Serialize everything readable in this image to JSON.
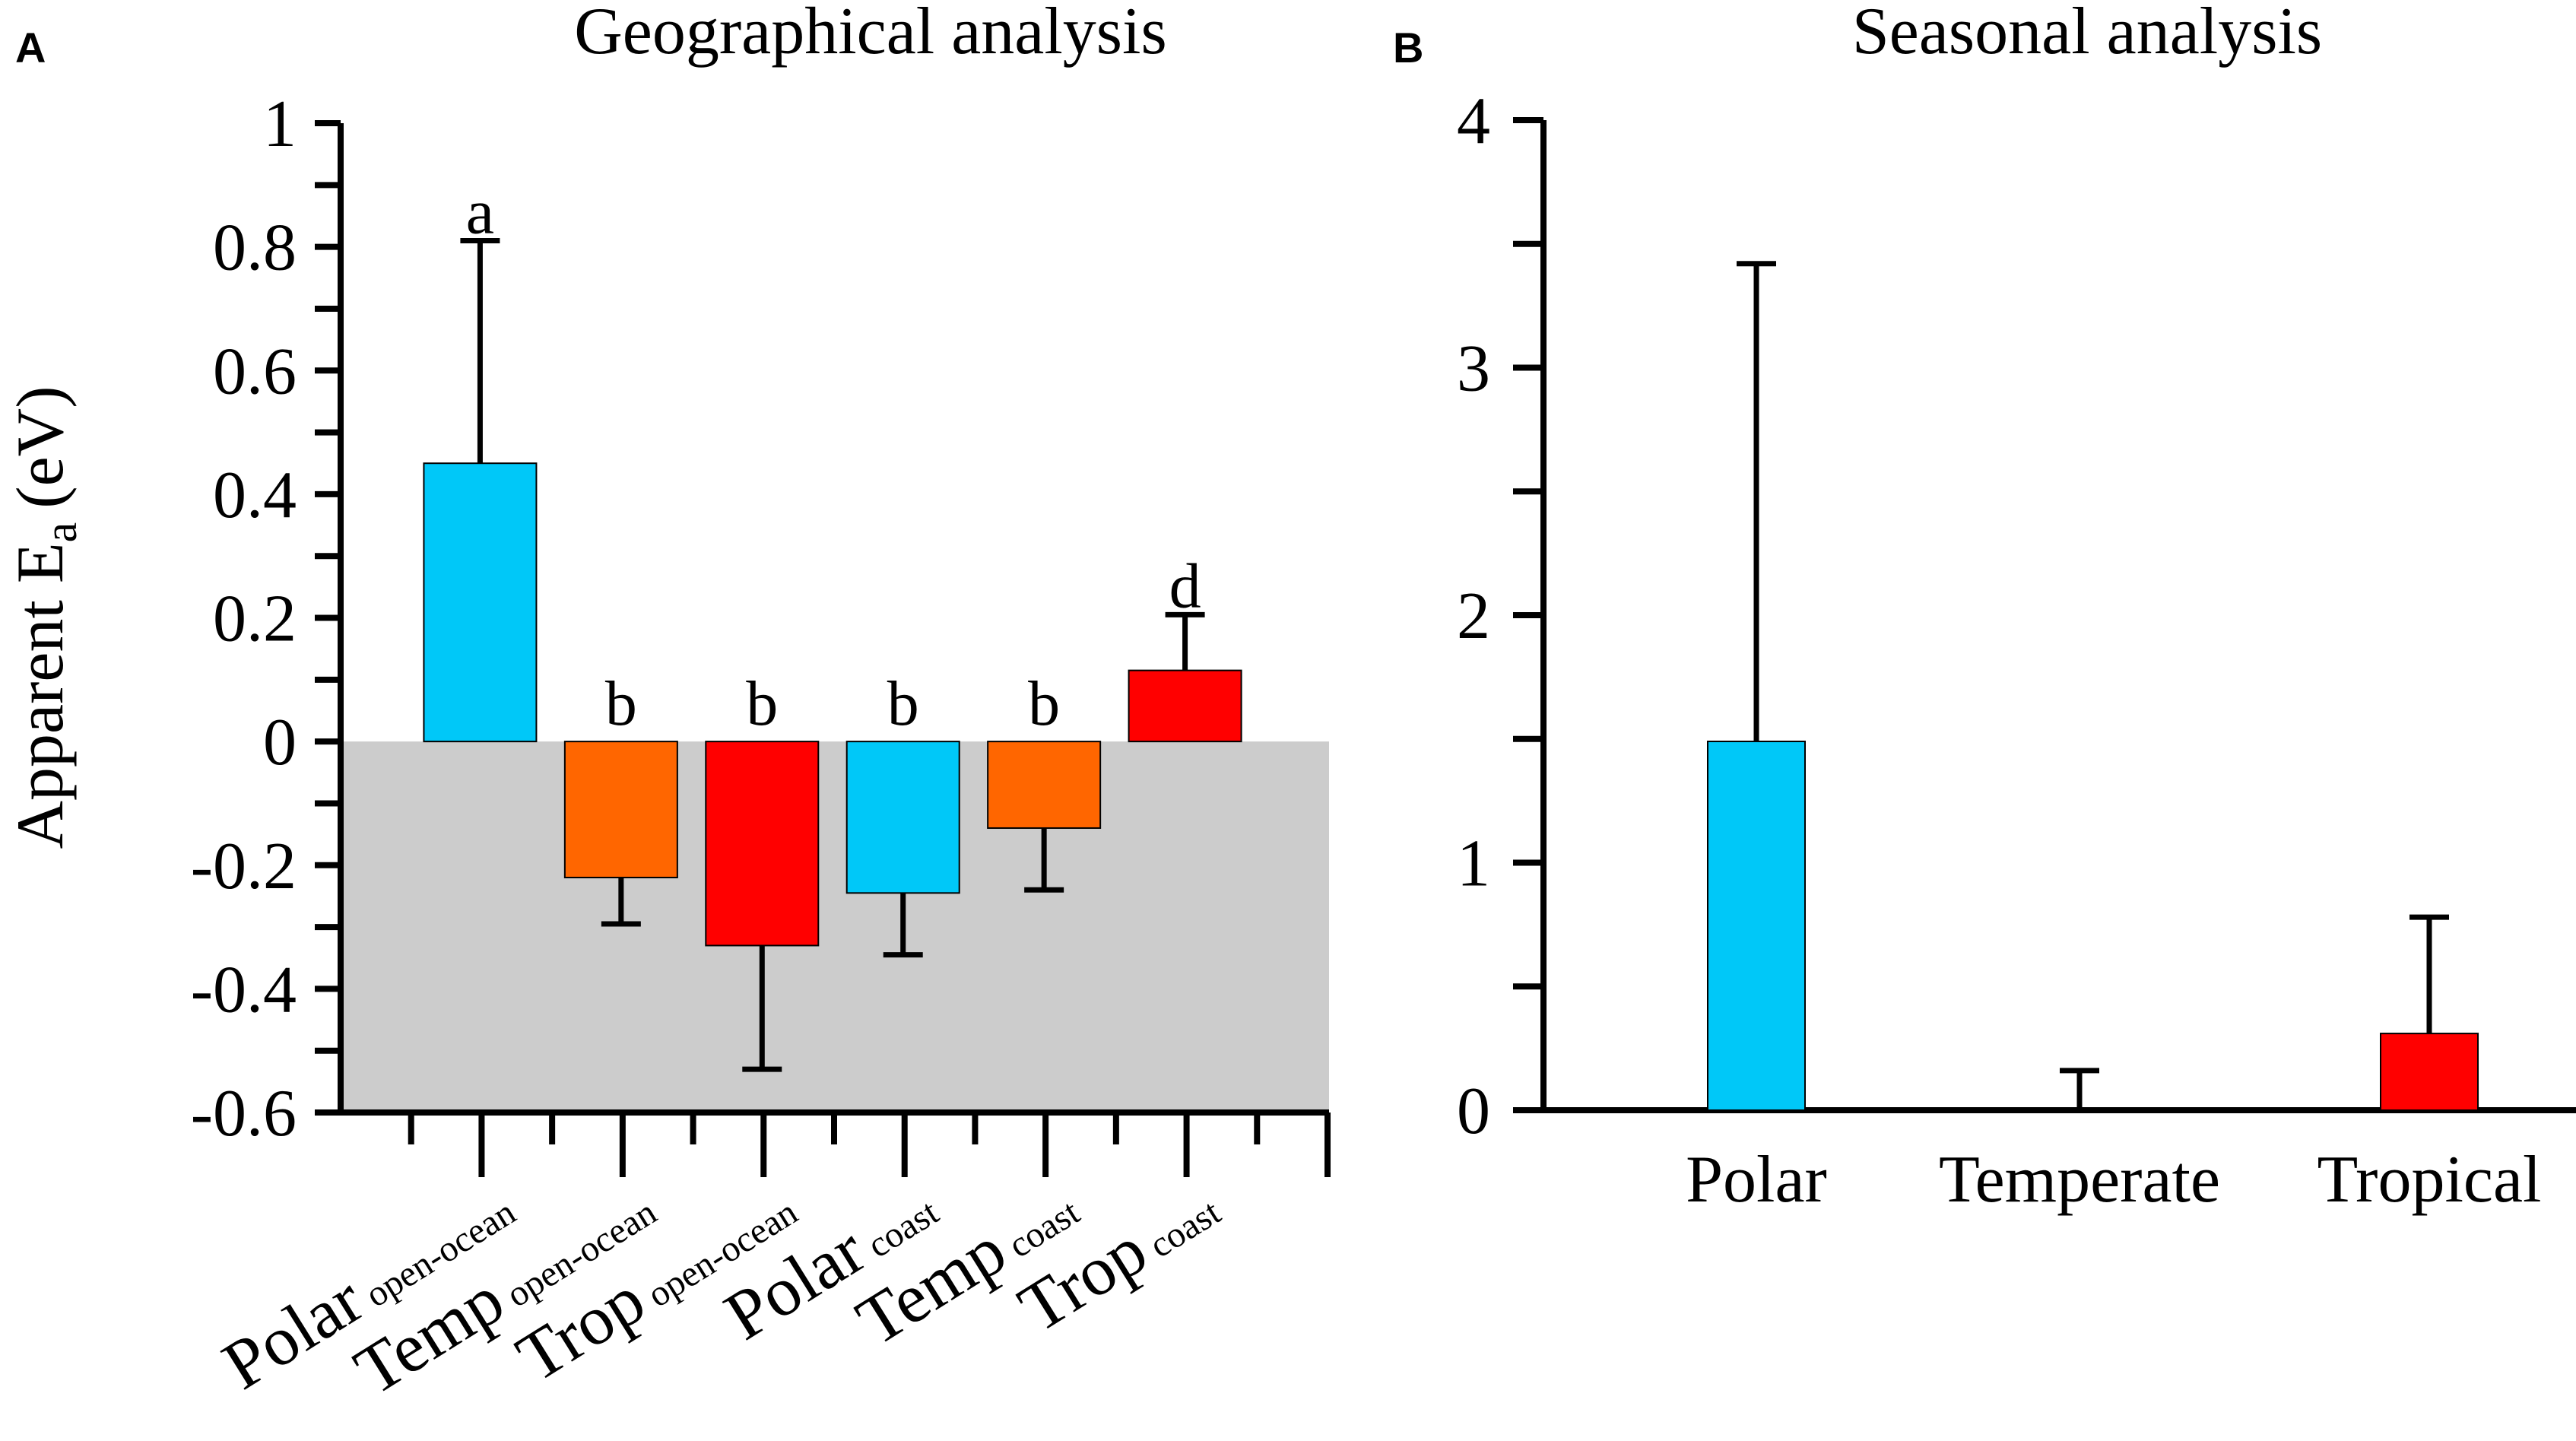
{
  "chart_data": [
    {
      "panel": "A",
      "type": "bar",
      "title": "Geographical analysis",
      "ylabel": "Apparent E",
      "ylabel_sub": "a",
      "ylabel_unit": "(eV)",
      "ylim": [
        -0.6,
        1.0
      ],
      "yticks": [
        1,
        0.8,
        0.6,
        0.4,
        0.2,
        0,
        -0.2,
        -0.4,
        -0.6
      ],
      "ytick_labels": [
        "1",
        "0.8",
        "0.6",
        "0.4",
        "0.2",
        "0",
        "-0.2",
        "-0.4",
        "-0.6"
      ],
      "negative_region_shaded": true,
      "shade_color": "#cccccc",
      "categories": [
        {
          "main": "Polar",
          "sub": "open-ocean"
        },
        {
          "main": "Temp",
          "sub": "open-ocean"
        },
        {
          "main": "Trop",
          "sub": "open-ocean"
        },
        {
          "main": "Polar",
          "sub": "coast"
        },
        {
          "main": "Temp",
          "sub": "coast"
        },
        {
          "main": "Trop",
          "sub": "coast"
        }
      ],
      "values": [
        0.45,
        -0.22,
        -0.33,
        -0.245,
        -0.14,
        0.115
      ],
      "error_ends": [
        0.81,
        -0.295,
        -0.53,
        -0.345,
        -0.24,
        0.205
      ],
      "significance": [
        "a",
        "b",
        "b",
        "b",
        "b",
        "d"
      ],
      "colors": [
        "#00c8f8",
        "#ff6600",
        "#ff0000",
        "#00c8f8",
        "#ff6600",
        "#ff0000"
      ]
    },
    {
      "panel": "B",
      "type": "bar",
      "title": "Seasonal analysis",
      "ylim": [
        0,
        4
      ],
      "yticks": [
        4,
        3,
        2,
        1,
        0
      ],
      "ytick_labels": [
        "4",
        "3",
        "2",
        "1",
        "0"
      ],
      "categories": [
        "Polar",
        "Temperate",
        "Tropical"
      ],
      "values": [
        1.49,
        0.0,
        0.31
      ],
      "error_ends": [
        3.42,
        0.16,
        0.78
      ],
      "colors": [
        "#00c8f8",
        "#ff6600",
        "#ff0000"
      ]
    }
  ]
}
